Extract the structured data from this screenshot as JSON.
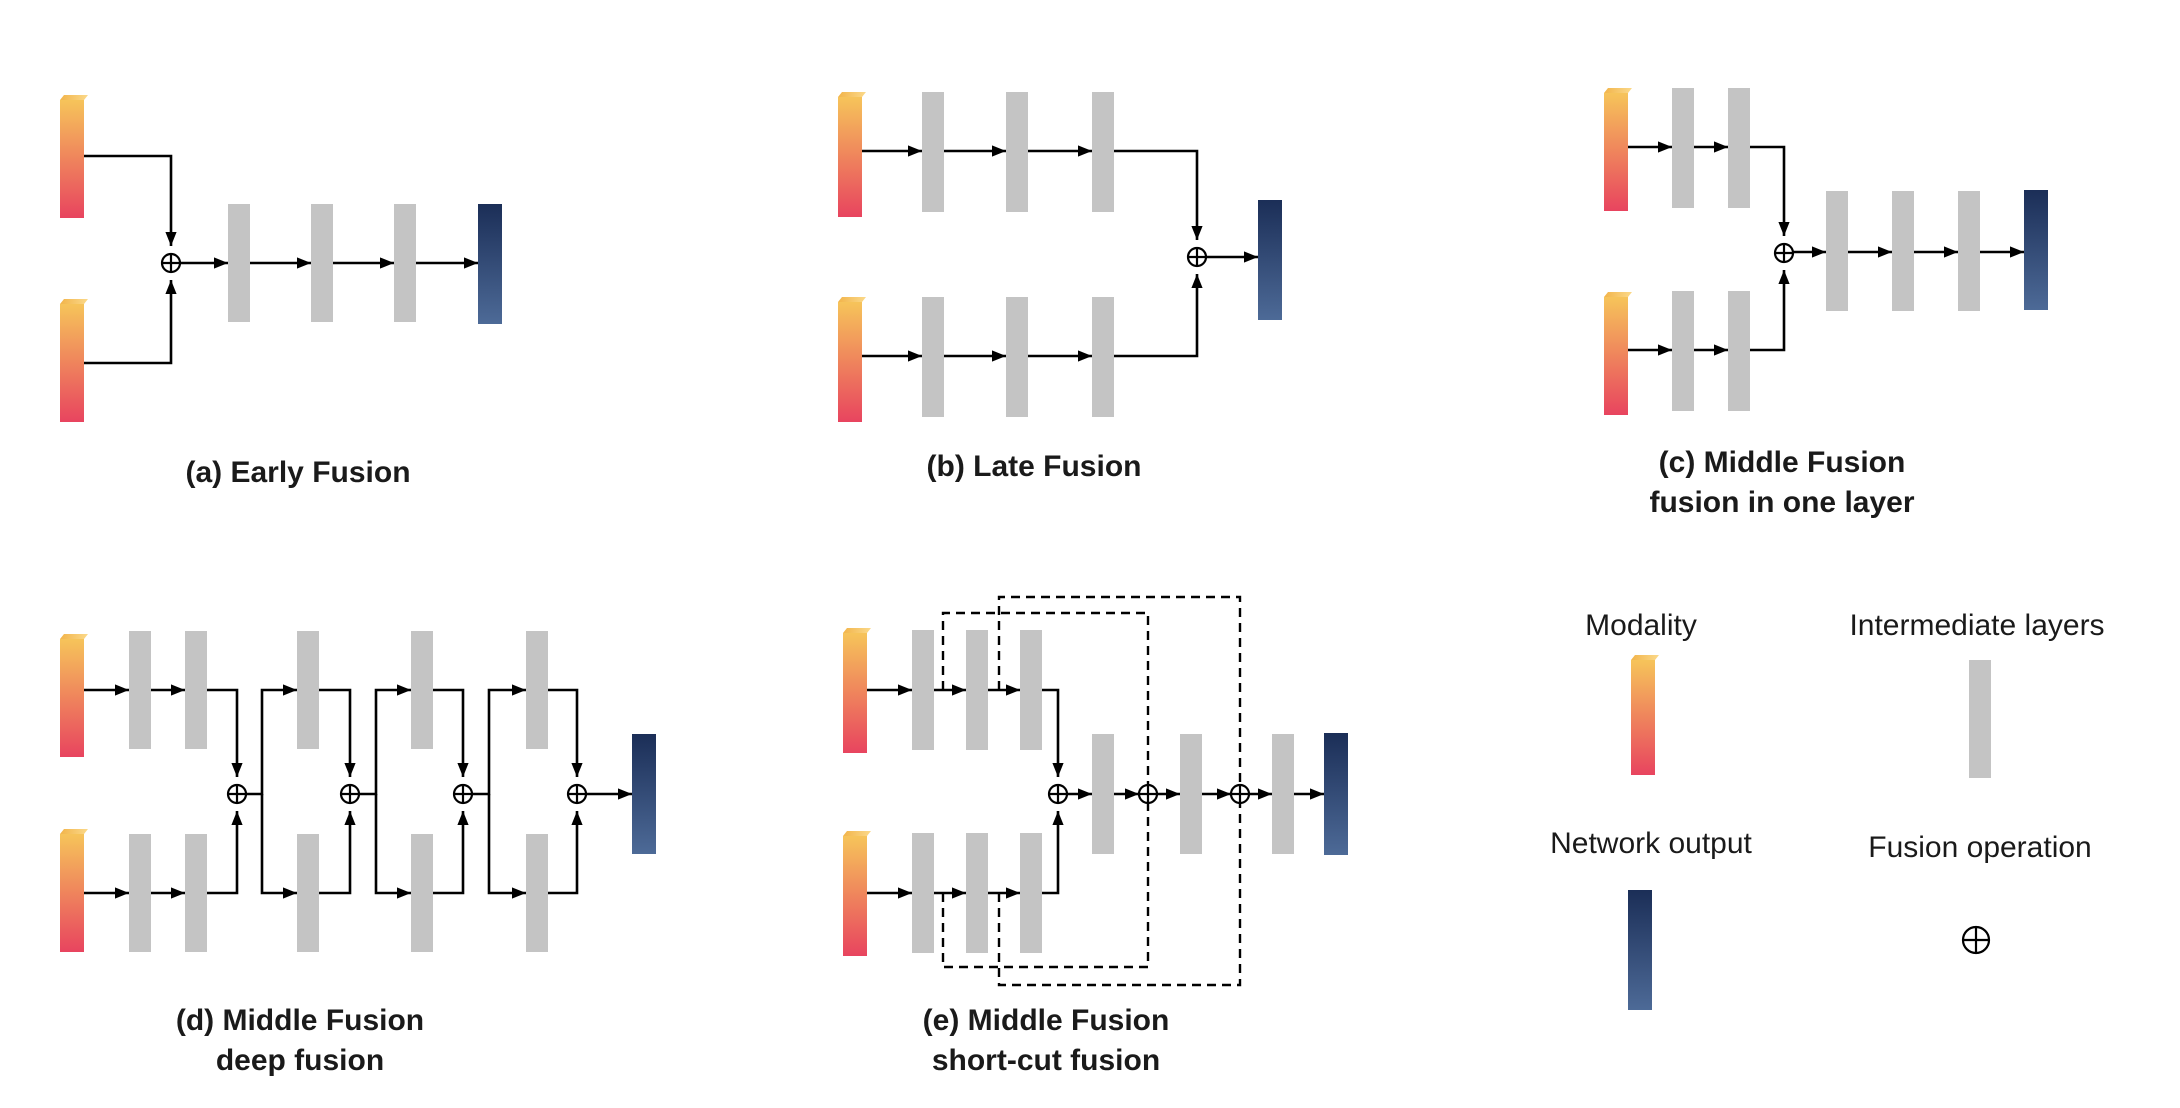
{
  "captions": {
    "a": "(a) Early Fusion",
    "b": "(b) Late Fusion",
    "c_line1": "(c) Middle Fusion",
    "c_line2": "fusion in one layer",
    "d_line1": "(d) Middle Fusion",
    "d_line2": "deep fusion",
    "e_line1": "(e) Middle Fusion",
    "e_line2": "short-cut fusion"
  },
  "legend": {
    "modality": "Modality",
    "intermediate": "Intermediate layers",
    "output": "Network output",
    "fusion": "Fusion operation"
  },
  "colors": {
    "modality_top": "#f6c45a",
    "modality_bottom": "#e8445f",
    "intermediate": "#c4c4c4",
    "output_top": "#1b2e57",
    "output_bottom": "#4d6a97"
  }
}
